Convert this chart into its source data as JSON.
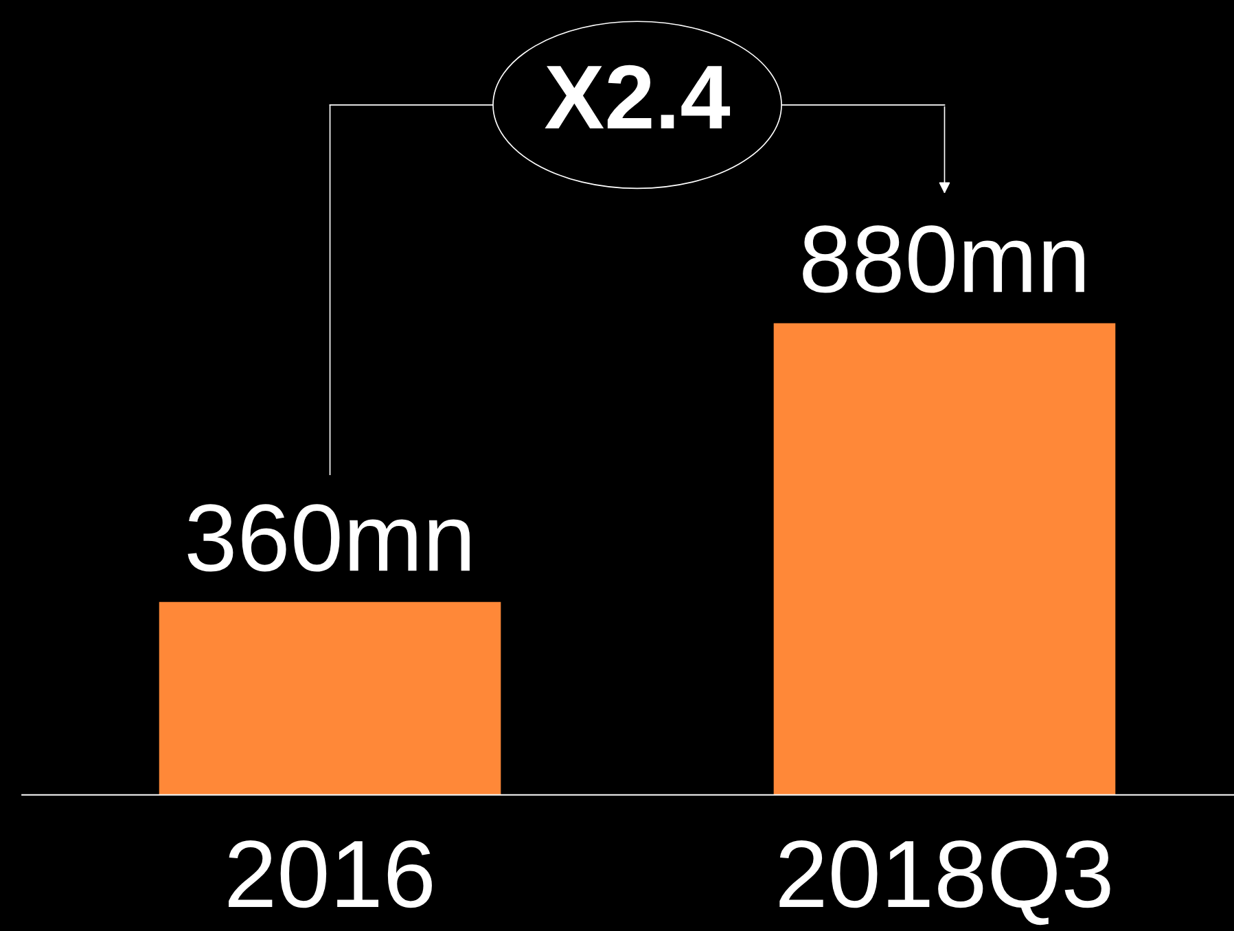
{
  "chart_data": {
    "type": "bar",
    "categories": [
      "2016",
      "2018Q3"
    ],
    "values": [
      360,
      880
    ],
    "color": "#ff8838",
    "value_labels": [
      "360mn",
      "880mn"
    ],
    "annotations": [
      "X2.4"
    ],
    "legend": false
  }
}
